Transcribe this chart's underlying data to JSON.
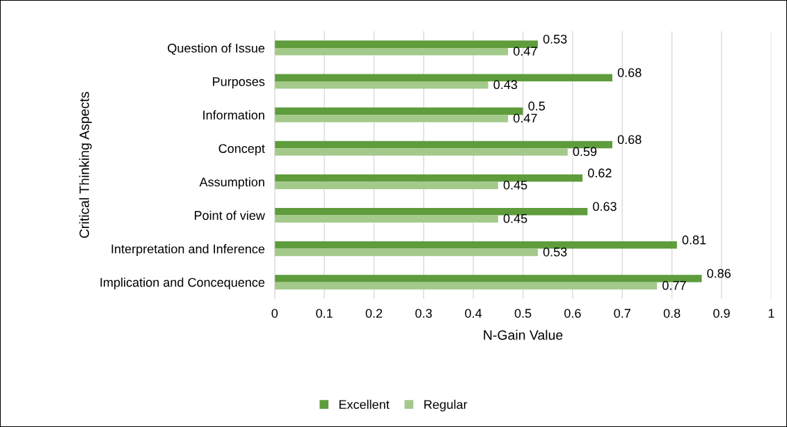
{
  "chart_data": {
    "type": "bar",
    "orientation": "horizontal",
    "categories": [
      "Question of Issue",
      "Purposes",
      "Information",
      "Concept",
      "Assumption",
      "Point of view",
      "Interpretation and Inference",
      "Implication and Concequence"
    ],
    "series": [
      {
        "name": "Excellent",
        "color": "#5e9c3c",
        "values": [
          0.53,
          0.68,
          0.5,
          0.68,
          0.62,
          0.63,
          0.81,
          0.86
        ]
      },
      {
        "name": "Regular",
        "color": "#a3c98b",
        "values": [
          0.47,
          0.43,
          0.47,
          0.59,
          0.45,
          0.45,
          0.53,
          0.77
        ]
      }
    ],
    "xlabel": "N-Gain Value",
    "ylabel": "Critical Thinking Aspects",
    "xlim": [
      0,
      1
    ],
    "xticks": [
      0,
      0.1,
      0.2,
      0.3,
      0.4,
      0.5,
      0.6,
      0.7,
      0.8,
      0.9,
      1
    ],
    "grid": "x",
    "legend": "bottom",
    "data_labels": true
  }
}
